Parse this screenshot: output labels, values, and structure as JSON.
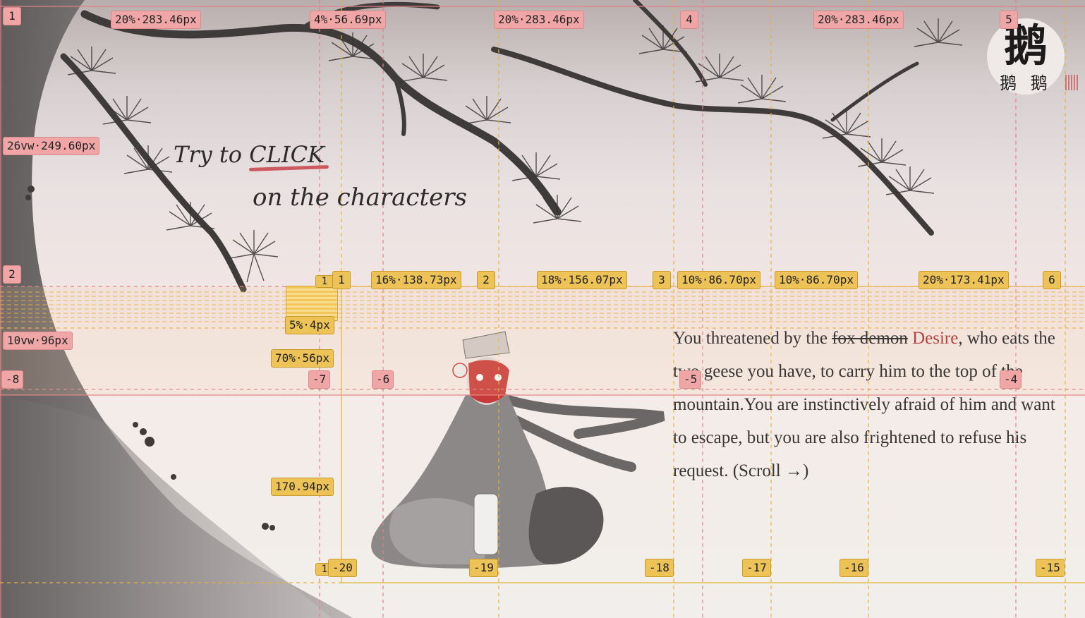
{
  "hint": {
    "line1_prefix": "Try to ",
    "line1_emphasis": "CLICK",
    "line2": "on the characters"
  },
  "story": {
    "text_before": "You threatened by the ",
    "struck": "fox demon",
    "space": " ",
    "name": "Desire",
    "text_after": ", who eats the two geese you have, to carry him to the top of the mountain.You are instinctively afraid of him and want to escape, but you are also frightened to refuse his request. (Scroll →)"
  },
  "logo": {
    "big": "鹅",
    "small": "鹅 鹅"
  },
  "overlay": {
    "top": {
      "a1": "1",
      "w1": "20%·283.46px",
      "w2": "4%·56.69px",
      "w3": "20%·283.46px",
      "a4": "4",
      "w4": "20%·283.46px",
      "a5": "5"
    },
    "left": {
      "h1": "26vw·249.60px",
      "a2": "2",
      "h2": "10vw·96px",
      "a_neg8": "-8"
    },
    "mid": {
      "one_a": "1",
      "one_b": "1",
      "w16": "16%·138.73px",
      "two": "2",
      "w18": "18%·156.07px",
      "three": "3",
      "w10a": "10%·86.70px",
      "w10b": "10%·86.70px",
      "w20": "20%·173.41px",
      "six": "6",
      "p5": "5%·4px",
      "p70": "70%·56px",
      "h170": "170.94px"
    },
    "neg": {
      "n7": "-7",
      "n6": "-6",
      "n5": "-5",
      "n4": "-4"
    },
    "bottom": {
      "one": "1",
      "n20": "-20",
      "n19": "-19",
      "n18": "-18",
      "n17": "-17",
      "n16": "-16",
      "n15": "-15"
    }
  },
  "colors": {
    "pink_tag": "#f0a6a6",
    "gold_tag": "#edc257",
    "accent_red": "#b5403f",
    "ink": "#2d2a2a"
  }
}
